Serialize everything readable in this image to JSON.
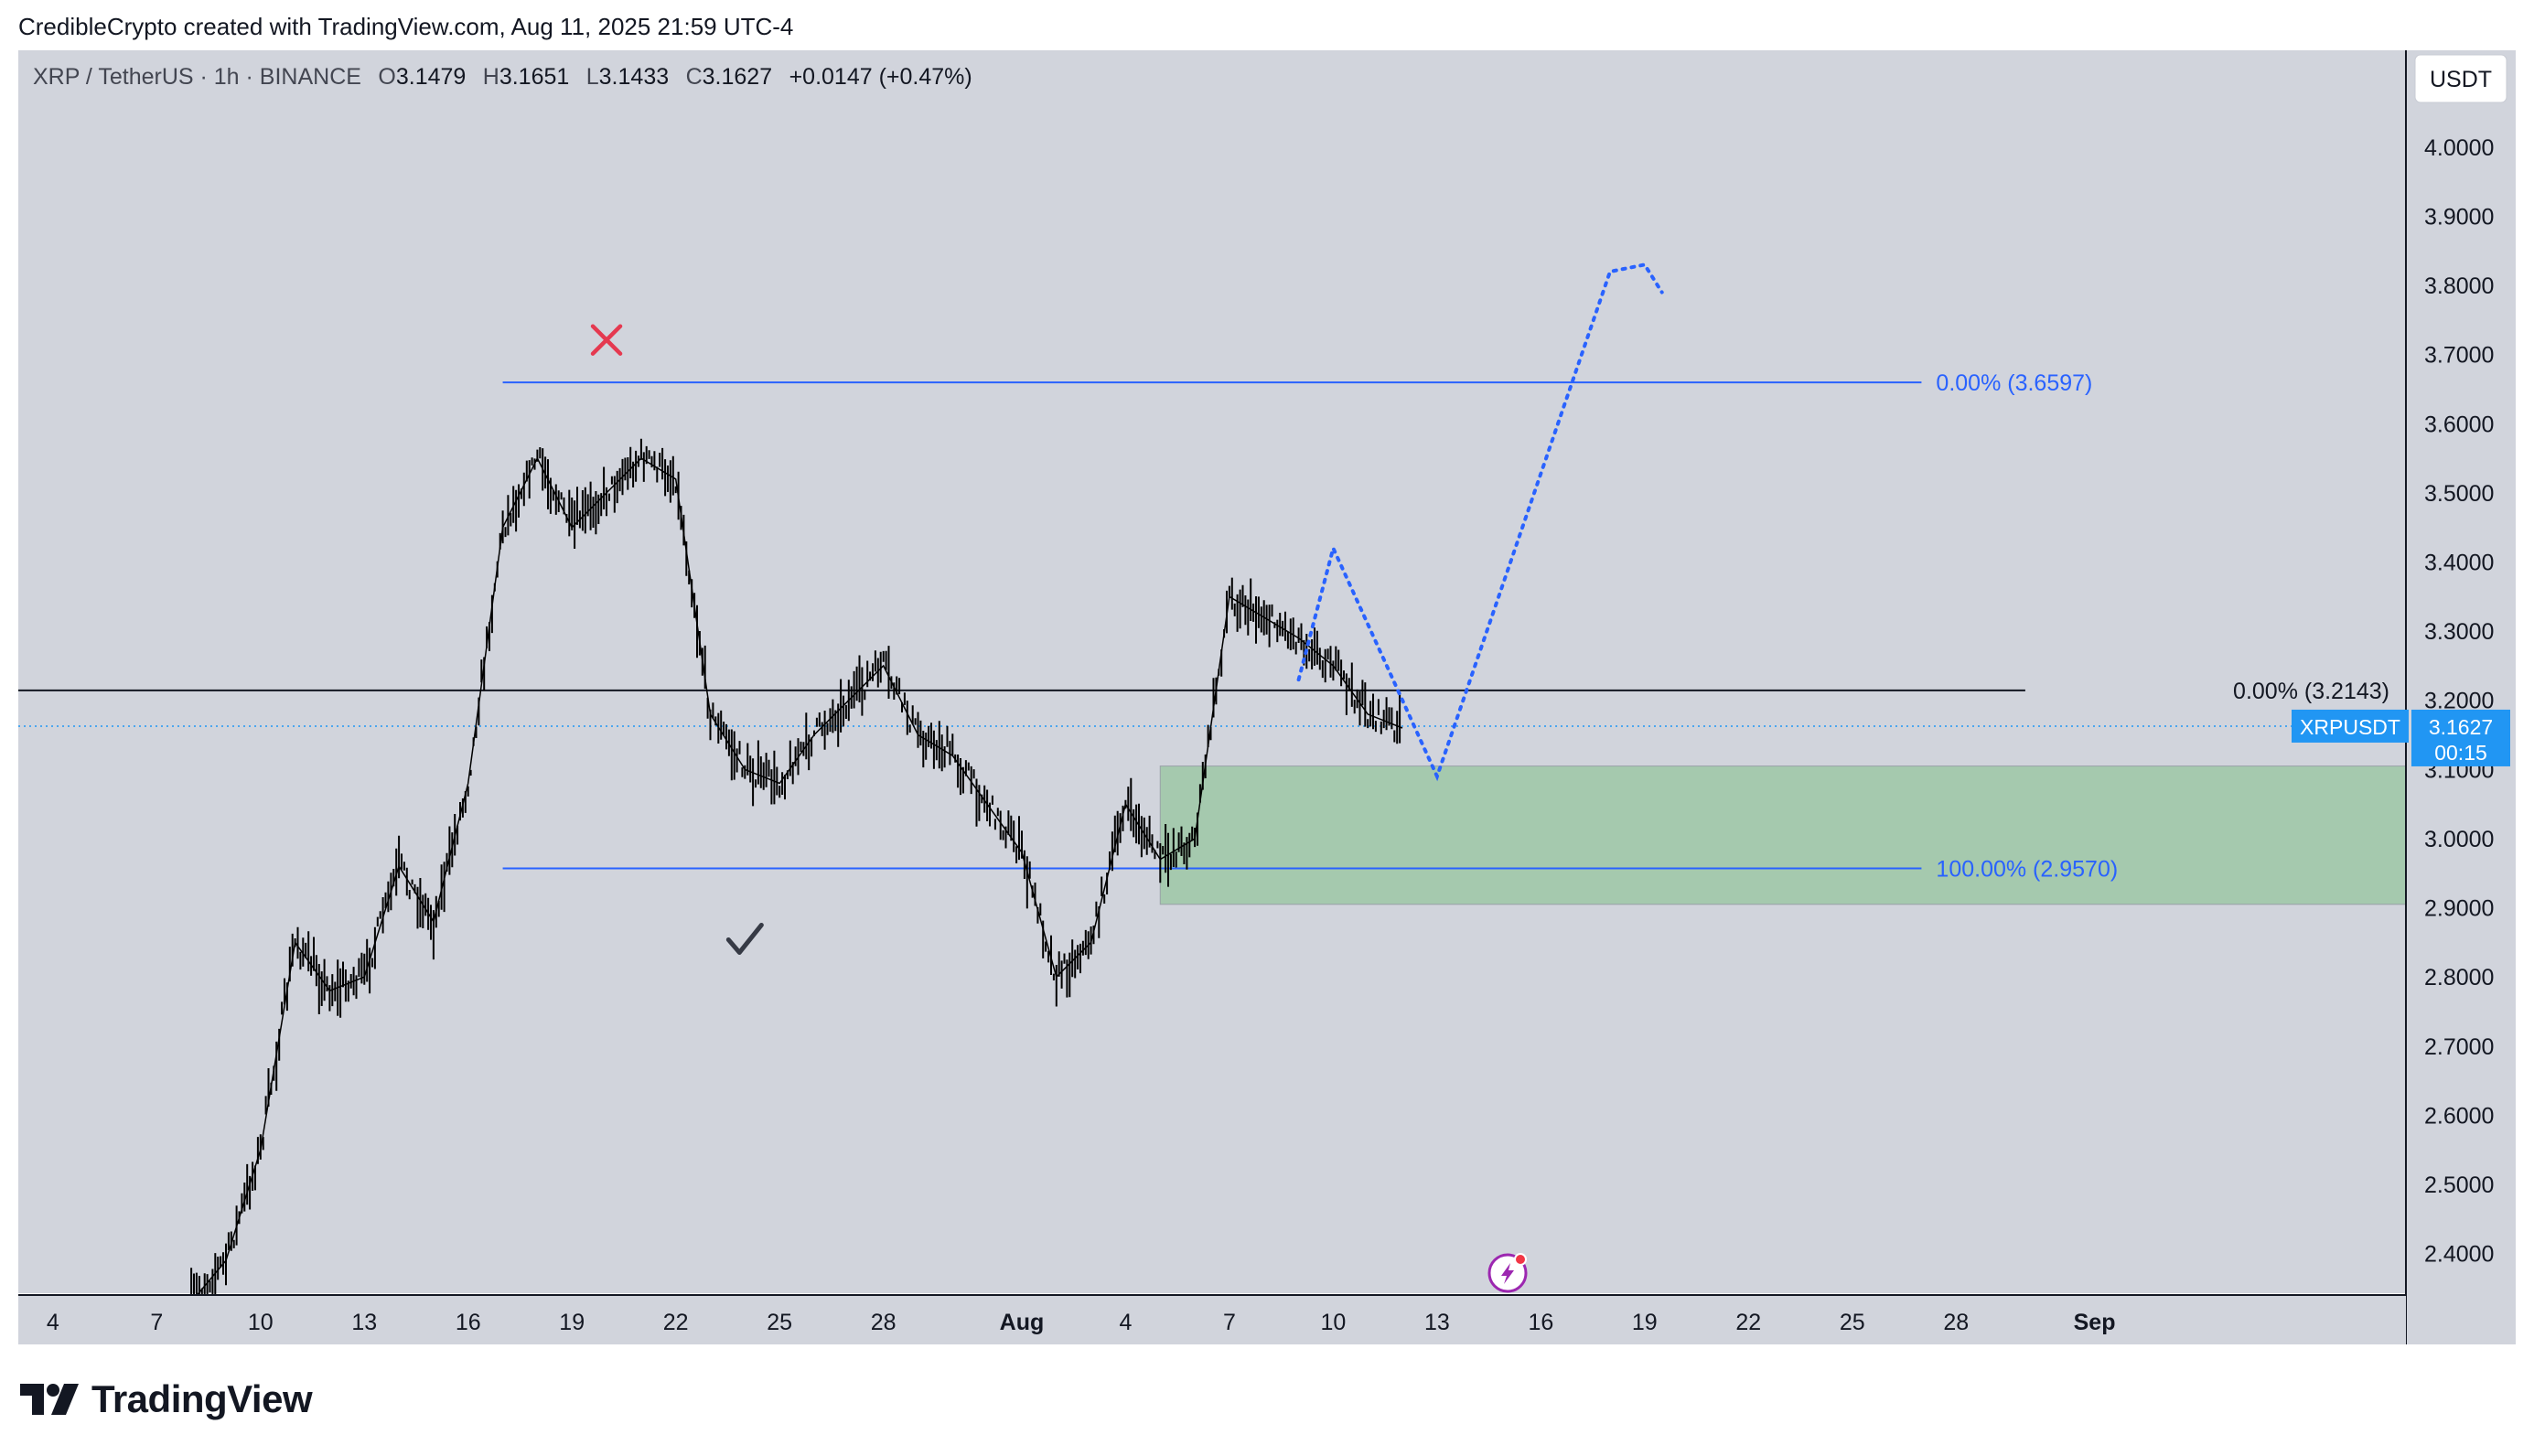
{
  "attribution": "CredibleCrypto created with TradingView.com, Aug 11, 2025 21:59 UTC-4",
  "brand": {
    "name": "TradingView",
    "icon": "tradingview-logo-icon"
  },
  "legend": {
    "symbol": "XRP / TetherUS · 1h · BINANCE",
    "o_label": "O",
    "o_value": "3.1479",
    "h_label": "H",
    "h_value": "3.1651",
    "l_label": "L",
    "l_value": "3.1433",
    "c_label": "C",
    "c_value": "3.1627",
    "change": "+0.0147 (+0.47%)"
  },
  "currency_button": "USDT",
  "price_tag": {
    "symbol": "XRPUSDT",
    "price": "3.1627",
    "countdown": "00:15",
    "color": "#2196f3"
  },
  "colors": {
    "background": "#d1d4dc",
    "fib_line": "#2962ff",
    "zone_fill": "#a5c9ae",
    "projection": "#2962ff",
    "x_mark": "#e53950",
    "candles": "#000000"
  },
  "icons": [
    "x-mark-icon",
    "check-mark-icon",
    "lightning-icon"
  ],
  "chart_data": {
    "type": "line",
    "title": "",
    "interval": "1h",
    "y_axis": {
      "range": [
        2.34,
        4.14
      ],
      "ticks": [
        "4.0000",
        "3.9000",
        "3.8000",
        "3.7000",
        "3.6000",
        "3.5000",
        "3.4000",
        "3.3000",
        "3.2000",
        "3.1000",
        "3.0000",
        "2.9000",
        "2.8000",
        "2.7000",
        "2.6000",
        "2.5000",
        "2.4000"
      ],
      "tick_values": [
        4.0,
        3.9,
        3.8,
        3.7,
        3.6,
        3.5,
        3.4,
        3.3,
        3.2,
        3.1,
        3.0,
        2.9,
        2.8,
        2.7,
        2.6,
        2.5,
        2.4
      ]
    },
    "x_axis": {
      "range": [
        "2025-07-03",
        "2025-09-10"
      ],
      "ticks": [
        "4",
        "7",
        "10",
        "13",
        "16",
        "19",
        "22",
        "25",
        "28",
        "Aug",
        "4",
        "7",
        "10",
        "13",
        "16",
        "19",
        "22",
        "25",
        "28",
        "Sep"
      ],
      "tick_dates": [
        "2025-07-04",
        "2025-07-07",
        "2025-07-10",
        "2025-07-13",
        "2025-07-16",
        "2025-07-19",
        "2025-07-22",
        "2025-07-25",
        "2025-07-28",
        "2025-08-01",
        "2025-08-04",
        "2025-08-07",
        "2025-08-10",
        "2025-08-13",
        "2025-08-16",
        "2025-08-19",
        "2025-08-22",
        "2025-08-25",
        "2025-08-28",
        "2025-09-01"
      ]
    },
    "price_series": {
      "dates": [
        "2025-07-08",
        "2025-07-09",
        "2025-07-10",
        "2025-07-11",
        "2025-07-12",
        "2025-07-13",
        "2025-07-14",
        "2025-07-15",
        "2025-07-16",
        "2025-07-17",
        "2025-07-18",
        "2025-07-19",
        "2025-07-20",
        "2025-07-21",
        "2025-07-22",
        "2025-07-23",
        "2025-07-24",
        "2025-07-25",
        "2025-07-26",
        "2025-07-27",
        "2025-07-28",
        "2025-07-29",
        "2025-07-30",
        "2025-07-31",
        "2025-08-01",
        "2025-08-02",
        "2025-08-03",
        "2025-08-04",
        "2025-08-05",
        "2025-08-06",
        "2025-08-07",
        "2025-08-08",
        "2025-08-09",
        "2025-08-10",
        "2025-08-11",
        "2025-08-12"
      ],
      "close": [
        2.33,
        2.39,
        2.55,
        2.85,
        2.78,
        2.8,
        2.96,
        2.88,
        3.08,
        3.45,
        3.55,
        3.45,
        3.5,
        3.55,
        3.52,
        3.18,
        3.1,
        3.08,
        3.15,
        3.2,
        3.25,
        3.15,
        3.12,
        3.05,
        2.98,
        2.8,
        2.85,
        3.05,
        2.97,
        3.0,
        3.35,
        3.32,
        3.29,
        3.25,
        3.18,
        3.16
      ]
    },
    "horizontal_lines": [
      {
        "label": "0.00% (3.6597)",
        "value": 3.6597,
        "from": "2025-07-17",
        "to": "2025-08-27"
      },
      {
        "label": "100.00% (2.9570)",
        "value": 2.957,
        "from": "2025-07-17",
        "to": "2025-08-27"
      },
      {
        "label": "0.00% (3.2143)",
        "value": 3.2143,
        "from": "2025-07-03",
        "to": "2025-08-30"
      }
    ],
    "current_price": 3.1627,
    "zone": {
      "from": "2025-08-05",
      "to": "2025-09-10",
      "top": 3.105,
      "bottom": 2.905
    },
    "projection": {
      "dates": [
        "2025-08-09",
        "2025-08-10",
        "2025-08-13",
        "2025-08-18",
        "2025-08-19",
        "2025-08-19"
      ],
      "values": [
        3.23,
        3.42,
        3.09,
        3.82,
        3.83,
        3.79
      ]
    },
    "annotations": [
      {
        "icon": "x-mark-icon",
        "date": "2025-07-20",
        "value": 3.7
      },
      {
        "icon": "check-mark-icon",
        "date": "2025-07-24",
        "value": 2.92
      }
    ]
  }
}
